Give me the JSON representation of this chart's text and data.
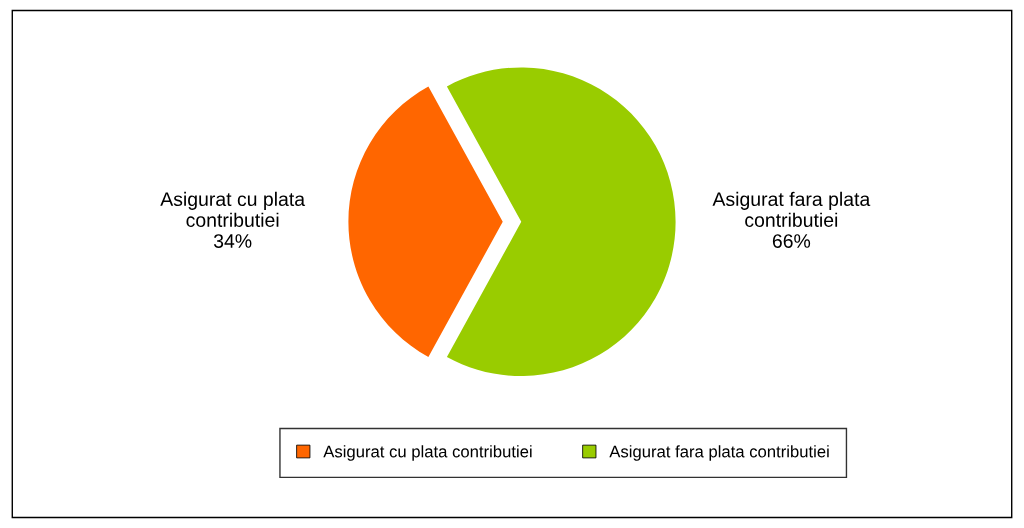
{
  "chart_data": {
    "type": "pie",
    "categories": [
      "Asigurat cu plata contributiei",
      "Asigurat fara plata contributiei"
    ],
    "values": [
      34,
      66
    ],
    "colors": [
      "#ff6600",
      "#99cc00"
    ],
    "value_labels": [
      "34%",
      "66%"
    ],
    "legend": "bottom"
  }
}
